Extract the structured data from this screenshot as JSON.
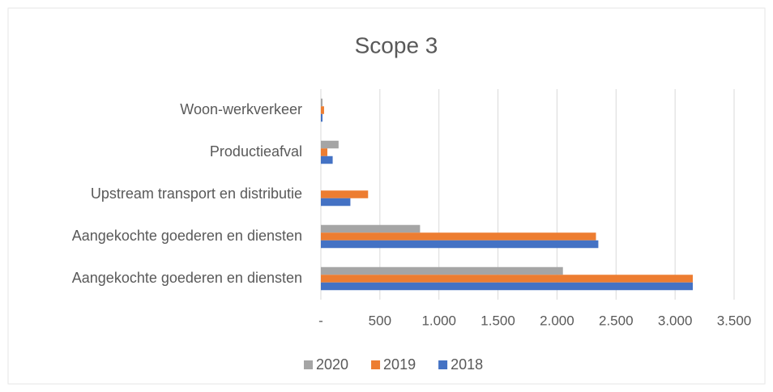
{
  "chart_data": {
    "type": "bar",
    "orientation": "horizontal",
    "title": "Scope 3",
    "categories": [
      "Aangekochte goederen en diensten",
      "Aangekochte goederen en diensten",
      "Upstream transport en distributie",
      "Productieafval",
      "Woon-werkverkeer"
    ],
    "series": [
      {
        "name": "2020",
        "color": "#a5a5a5",
        "values": [
          2050,
          840,
          null,
          150,
          14
        ]
      },
      {
        "name": "2019",
        "color": "#ed7d31",
        "values": [
          3150,
          2330,
          400,
          55,
          27
        ]
      },
      {
        "name": "2018",
        "color": "#4472c4",
        "values": [
          3150,
          2350,
          250,
          100,
          14
        ]
      }
    ],
    "xlim": [
      0,
      3500
    ],
    "xticks": [
      {
        "value": 0,
        "label": "-"
      },
      500,
      {
        "value": 1000,
        "label": "1.000"
      },
      {
        "value": 1500,
        "label": "1.500"
      },
      {
        "value": 2000,
        "label": "2.000"
      },
      {
        "value": 2500,
        "label": "2.500"
      },
      {
        "value": 3000,
        "label": "3.000"
      },
      {
        "value": 3500,
        "label": "3.500"
      }
    ],
    "grid": true,
    "legend": "bottom"
  }
}
